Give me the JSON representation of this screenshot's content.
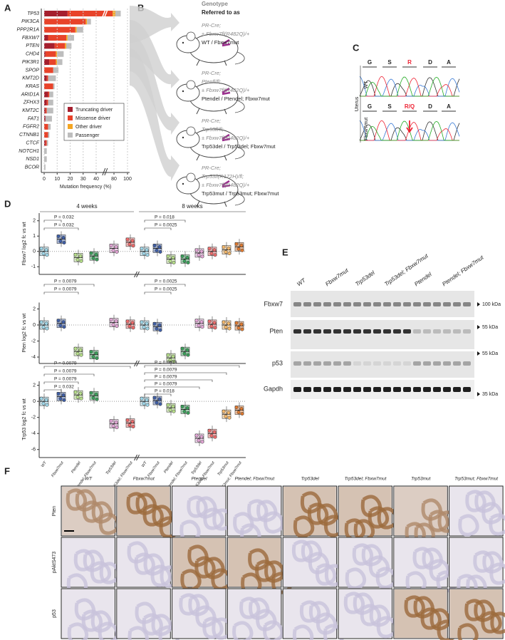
{
  "panel_a": {
    "label": "A",
    "genes": [
      "TP53",
      "PIK3CA",
      "PPP2R1A",
      "FBXW7",
      "PTEN",
      "CHD4",
      "PIK3R1",
      "SPOP",
      "KMT2D",
      "KRAS",
      "ARID1A",
      "ZFHX3",
      "KMT2C",
      "FAT1",
      "FGFR2",
      "CTNNB1",
      "CTCF",
      "NOTCH1",
      "NSD1",
      "BCOR"
    ],
    "series": [
      {
        "name": "Truncating driver",
        "color": "#a51f2e",
        "values": [
          18,
          0,
          0,
          3,
          8,
          1,
          4,
          0,
          2,
          0,
          3,
          2,
          1,
          1,
          0,
          0,
          1,
          0,
          0,
          0
        ]
      },
      {
        "name": "Missense driver",
        "color": "#e8432a",
        "values": [
          60,
          32,
          24,
          14,
          8,
          8,
          5,
          7,
          1,
          7,
          1,
          1,
          1,
          0,
          3,
          3,
          1,
          0,
          0,
          0
        ]
      },
      {
        "name": "Other driver",
        "color": "#f5a623",
        "values": [
          4,
          1,
          1,
          1,
          1,
          1,
          1,
          0,
          0,
          0,
          0,
          0,
          0,
          0,
          0,
          0,
          0,
          0,
          0,
          0
        ]
      },
      {
        "name": "Passenger",
        "color": "#bdbdbd",
        "values": [
          8,
          3,
          5,
          5,
          4,
          5,
          4,
          4,
          6,
          1,
          3,
          4,
          5,
          5,
          2,
          1,
          1,
          2,
          2,
          1
        ]
      }
    ],
    "xlim": [
      0,
      100
    ],
    "xticks": [
      0,
      10,
      20,
      30,
      40,
      80,
      100
    ],
    "axis_break": [
      45,
      70
    ],
    "xlabel": "Mutation frequency (%)"
  },
  "panel_b": {
    "label": "B",
    "header_genotype": "Genotype",
    "header_referred": "Referred to as",
    "mice": [
      {
        "genotype": [
          "PR-Cre;",
          "± Fbxw7fl(R482Q)/+"
        ],
        "name": "WT / Fbxw7mut"
      },
      {
        "genotype": [
          "PR-Cre;",
          "Ptenfl/fl;",
          "± Fbxw7fl(R482Q)/+"
        ],
        "name": "Ptendel / Ptendel; Fbxw7mut"
      },
      {
        "genotype": [
          "PR-Cre;",
          "Trp53fl/fl;",
          "± Fbxw7fl(R482Q)/+"
        ],
        "name": "Trp53del / Trp53del; Fbxw7mut"
      },
      {
        "genotype": [
          "PR-Cre;",
          "Trp53fl(R172H)/fl;",
          "± Fbxw7fl(R482Q)/+"
        ],
        "name": "Trp53mut / Trp53mut; Fbxw7mut"
      }
    ]
  },
  "panel_c": {
    "label": "C",
    "bases": [
      "G",
      "S",
      "R",
      "D",
      "A"
    ],
    "mutant_base": "R/Q",
    "tissue": "Uterus",
    "rows": [
      "WT",
      "Fbxw7mut"
    ]
  },
  "panel_d": {
    "label": "D",
    "timepoints": [
      "4 weeks",
      "8 weeks"
    ],
    "categories": [
      "WT",
      "Fbxw7mut",
      "Ptendel",
      "Ptendel; Fbxw7mut",
      "Trp53del",
      "Trp53del; Fbxw7mut",
      "Trp53mut",
      "Trp53mut; Fbxw7mut"
    ],
    "colors": [
      "#9fd8ea",
      "#3f5fa8",
      "#b7e08a",
      "#3aa05a",
      "#e3a6d6",
      "#ee6b6b",
      "#f7b96a",
      "#e07a30"
    ],
    "plots": [
      {
        "ylabel": "Fbxw7 log2 fc vs wt",
        "ylim": [
          -1.5,
          2.5
        ],
        "yticks": [
          2,
          1,
          0,
          -1
        ],
        "weeks_4": [
          0,
          0.8,
          -0.4,
          -0.3,
          0.2,
          0.6
        ],
        "weeks_8": [
          0,
          0.2,
          -0.5,
          -0.5,
          -0.1,
          0,
          0.1,
          0.3
        ],
        "pvalues_4": [
          "P = 0.032",
          "P = 0.032"
        ],
        "pvalues_8": [
          "P = 0.018",
          "P = 0.0025"
        ]
      },
      {
        "ylabel": "Pten log2 fc vs wt",
        "ylim": [
          -4.8,
          2.8
        ],
        "yticks": [
          2,
          0,
          -2,
          -4
        ],
        "weeks_4": [
          0,
          0.2,
          -3.3,
          -3.7,
          0.3,
          0.1
        ],
        "weeks_8": [
          0,
          -0.2,
          -4.1,
          -3.3,
          0.2,
          0.1,
          0,
          -0.1
        ],
        "pvalues_4": [
          "P = 0.0079",
          "P = 0.0079"
        ],
        "pvalues_8": [
          "P = 0.0025",
          "P = 0.0025"
        ]
      },
      {
        "ylabel": "Trp53 log2 fc vs wt",
        "ylim": [
          -7,
          2.5
        ],
        "yticks": [
          2,
          0,
          -2,
          -4,
          -6
        ],
        "weeks_4": [
          0,
          0.6,
          0.8,
          0.7,
          -2.8,
          -2.7
        ],
        "weeks_8": [
          0,
          0.1,
          -0.8,
          -1,
          -4.6,
          -4,
          -1.6,
          -1.1
        ],
        "pvalues_4": [
          "P = 0.0079",
          "P = 0.0079",
          "P = 0.0079",
          "P = 0.032"
        ],
        "pvalues_8": [
          "P = 0.0079",
          "P = 0.0079",
          "P = 0.0079",
          "P = 0.0079",
          "P = 0.018"
        ]
      }
    ]
  },
  "panel_e": {
    "label": "E",
    "lanes": [
      "WT",
      "Fbxw7mut",
      "Trp53del",
      "Trp53del; Fbxw7mut",
      "Ptendel",
      "Ptendel; Fbxw7mut"
    ],
    "proteins": [
      "Fbxw7",
      "Pten",
      "p53",
      "Gapdh"
    ],
    "markers": [
      "100 kDa",
      "55 kDa",
      "55 kDa",
      "35 kDa"
    ]
  },
  "panel_f": {
    "label": "F",
    "columns": [
      "WT",
      "Fbxw7mut",
      "Ptendel",
      "Ptendel; Fbxw7mut",
      "Trp53del",
      "Trp53del; Fbxw7mut",
      "Trp53mut",
      "Trp53mut; Fbxw7mut"
    ],
    "rows": [
      "Pten",
      "pAktS473",
      "p53"
    ]
  }
}
